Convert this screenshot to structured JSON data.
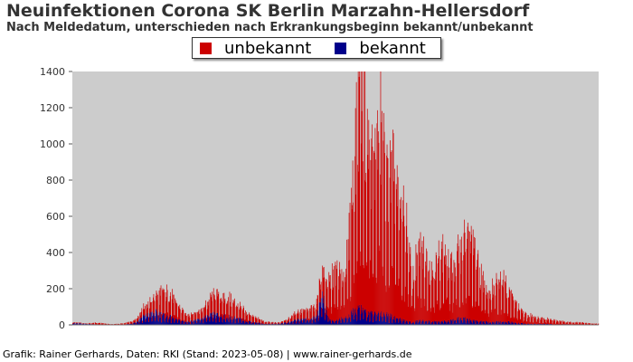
{
  "title": "Neuinfektionen Corona SK Berlin Marzahn-Hellersdorf",
  "subtitle": "Nach Meldedatum, unterschieden nach Erkrankungsbeginn bekannt/unbekannt",
  "footer": "Grafik: Rainer Gerhards, Daten: RKI (Stand: 2023-05-08) | www.rainer-gerhards.de",
  "colors": {
    "background": "#ffffff",
    "plot_background": "#cccccc",
    "unbekannt": "#cc0000",
    "bekannt": "#00008b"
  },
  "chart_data": {
    "type": "bar",
    "stacked": true,
    "title": "Neuinfektionen Corona SK Berlin Marzahn-Hellersdorf",
    "subtitle": "Nach Meldedatum, unterschieden nach Erkrankungsbeginn bekannt/unbekannt",
    "ylim": [
      0,
      1400
    ],
    "yticks": [
      0,
      200,
      400,
      600,
      800,
      1000,
      1200,
      1400
    ],
    "grid": false,
    "legend_placement": "top-center",
    "x_tick_labels_note": "dense overlapping date labels (illegible)",
    "weeks_from_plot_start": [
      0,
      4,
      8,
      12,
      16,
      18,
      20,
      22,
      24,
      26,
      28,
      30,
      32,
      34,
      36,
      40,
      44,
      48,
      52,
      56,
      60,
      64,
      68,
      70,
      72,
      74,
      76,
      78,
      80,
      82,
      84,
      86,
      88,
      90,
      92,
      94,
      96,
      98,
      100,
      102,
      104,
      106,
      108,
      110,
      112,
      114,
      116,
      118,
      120,
      122,
      124,
      126,
      128,
      130,
      132,
      134,
      136,
      138,
      140,
      142,
      144,
      146,
      148,
      150,
      152,
      154,
      156,
      158,
      160,
      162,
      164
    ],
    "series": [
      {
        "name": "unbekannt",
        "values": [
          5,
          2,
          8,
          2,
          5,
          10,
          20,
          40,
          60,
          80,
          110,
          120,
          90,
          50,
          35,
          40,
          90,
          100,
          60,
          30,
          10,
          5,
          20,
          40,
          40,
          50,
          60,
          130,
          180,
          250,
          200,
          320,
          750,
          1150,
          850,
          700,
          950,
          650,
          720,
          520,
          500,
          200,
          350,
          330,
          250,
          300,
          350,
          250,
          300,
          370,
          400,
          300,
          200,
          150,
          200,
          230,
          150,
          100,
          60,
          40,
          40,
          30,
          25,
          20,
          15,
          12,
          10,
          10,
          8,
          5,
          5
        ]
      },
      {
        "name": "bekannt",
        "values": [
          8,
          5,
          2,
          1,
          2,
          5,
          15,
          40,
          50,
          60,
          50,
          40,
          30,
          20,
          15,
          30,
          50,
          40,
          30,
          15,
          5,
          5,
          15,
          25,
          30,
          30,
          40,
          140,
          30,
          20,
          30,
          40,
          70,
          80,
          60,
          50,
          60,
          50,
          40,
          30,
          20,
          10,
          20,
          20,
          15,
          15,
          20,
          20,
          30,
          30,
          25,
          20,
          15,
          15,
          15,
          15,
          15,
          10,
          8,
          5,
          5,
          5,
          5,
          3,
          3,
          3,
          2,
          2,
          2,
          1,
          1
        ]
      }
    ]
  }
}
